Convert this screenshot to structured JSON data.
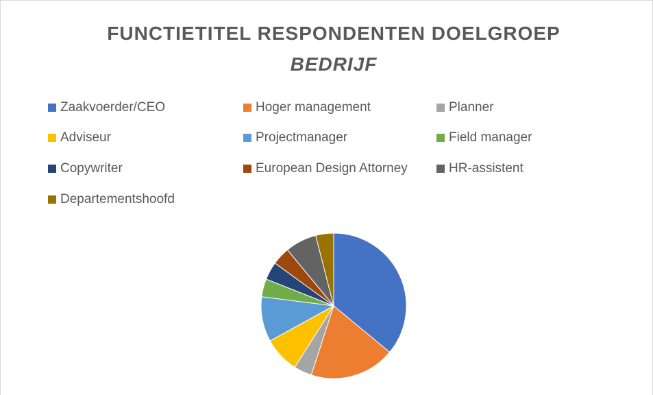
{
  "chart_data": {
    "type": "pie",
    "title": "FUNCTIETITEL RESPONDENTEN DOELGROEP",
    "subtitle": "BEDRIJF",
    "categories": [
      "Zaakvoerder/CEO",
      "Hoger management",
      "Planner",
      "Adviseur",
      "Projectmanager",
      "Field manager",
      "Copywriter",
      "European Design Attorney",
      "HR-assistent",
      "Departementshoofd"
    ],
    "values": [
      36,
      19,
      4,
      8,
      10,
      4,
      4,
      4,
      7,
      4
    ],
    "colors": [
      "#4472c4",
      "#ed7d31",
      "#a5a5a5",
      "#ffc000",
      "#5b9bd5",
      "#70ad47",
      "#264478",
      "#9e480e",
      "#636363",
      "#997300"
    ],
    "legend": "top"
  }
}
